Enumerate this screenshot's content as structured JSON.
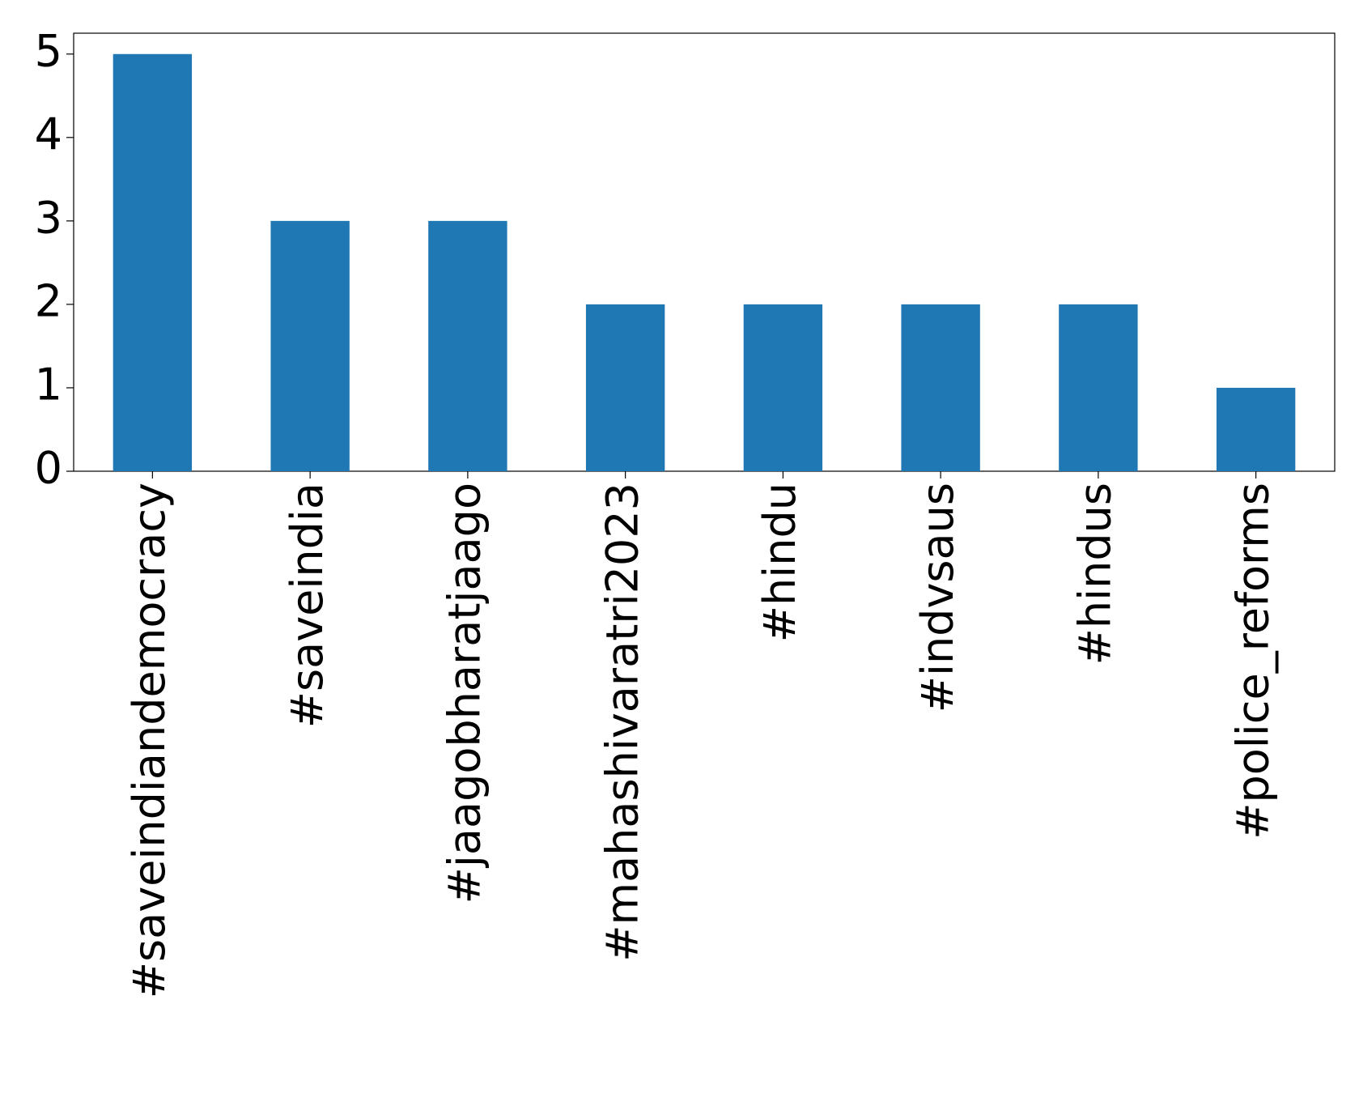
{
  "chart_data": {
    "type": "bar",
    "categories": [
      "#saveindiandemocracy",
      "#saveindia",
      "#jaagobharatjaago",
      "#mahashivaratri2023",
      "#hindu",
      "#indvsaus",
      "#hindus",
      "#police_reforms"
    ],
    "values": [
      5,
      3,
      3,
      2,
      2,
      2,
      2,
      1
    ],
    "color": "#1f77b4",
    "ylim": [
      0,
      5.25
    ],
    "yticks": [
      0,
      1,
      2,
      3,
      4,
      5
    ],
    "grid": false
  }
}
